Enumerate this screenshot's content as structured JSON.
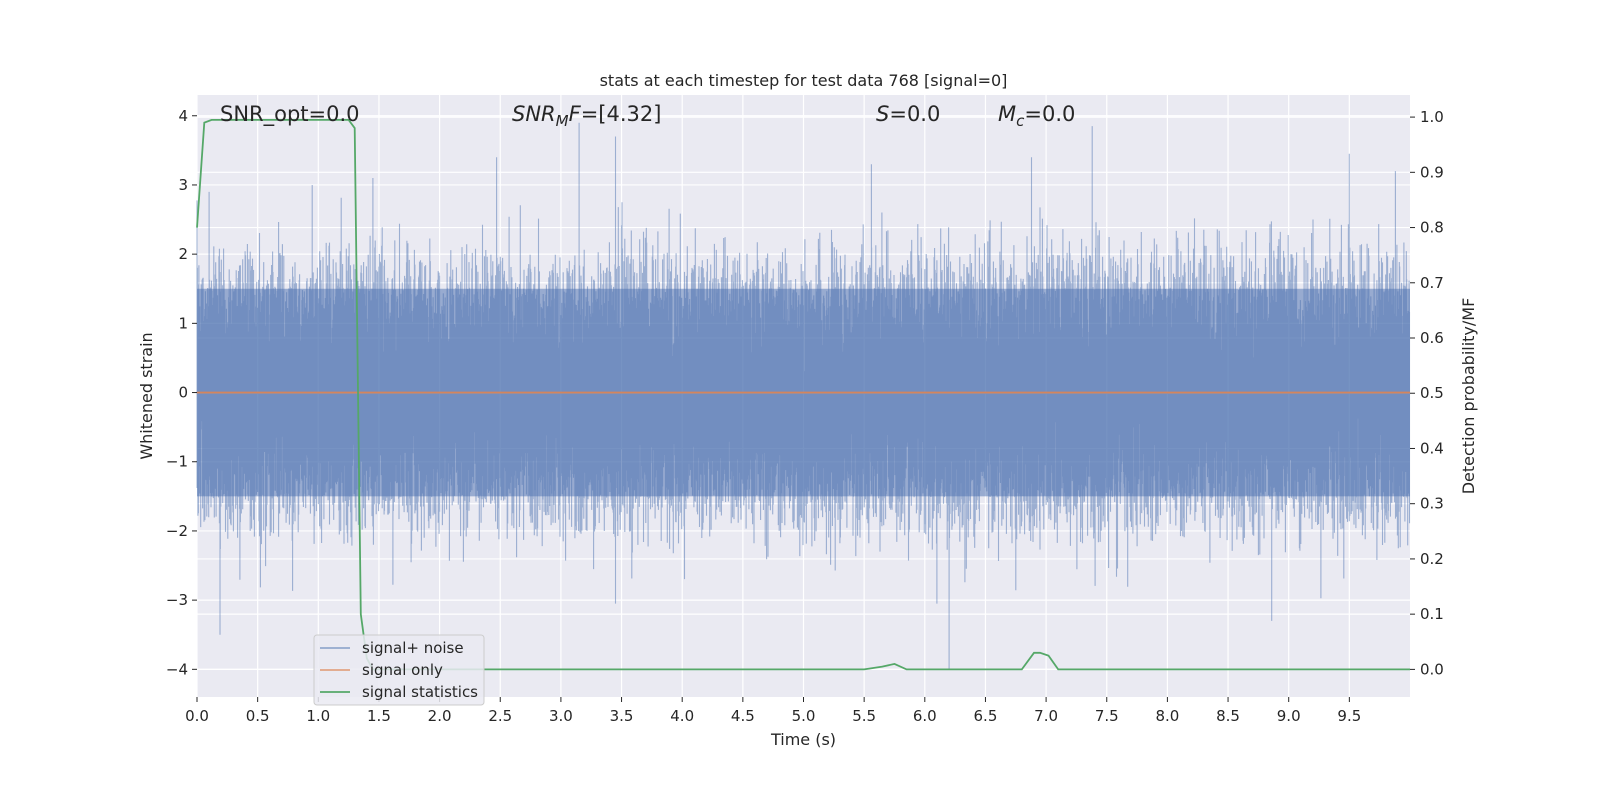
{
  "chart_data": {
    "type": "line",
    "title": "stats at each timestep for test data 768 [signal=0]",
    "xlabel": "Time (s)",
    "ylabel": "Whitened strain",
    "y2label": "Detection probability/MF",
    "xlim": [
      0.0,
      10.0
    ],
    "ylim": [
      -4.4,
      4.3
    ],
    "y2lim": [
      -0.05,
      1.04
    ],
    "xticks": [
      0.0,
      0.5,
      1.0,
      1.5,
      2.0,
      2.5,
      3.0,
      3.5,
      4.0,
      4.5,
      5.0,
      5.5,
      6.0,
      6.5,
      7.0,
      7.5,
      8.0,
      8.5,
      9.0,
      9.5
    ],
    "xtick_labels": [
      "0.0",
      "0.5",
      "1.0",
      "1.5",
      "2.0",
      "2.5",
      "3.0",
      "3.5",
      "4.0",
      "4.5",
      "5.0",
      "5.5",
      "6.0",
      "6.5",
      "7.0",
      "7.5",
      "8.0",
      "8.5",
      "9.0",
      "9.5"
    ],
    "yticks": [
      4,
      3,
      2,
      1,
      0,
      -1,
      -2,
      -3,
      -4
    ],
    "ytick_labels": [
      "4",
      "3",
      "2",
      "1",
      "0",
      "−1",
      "−2",
      "−3",
      "−4"
    ],
    "y2ticks": [
      1.0,
      0.9,
      0.8,
      0.7,
      0.6,
      0.5,
      0.4,
      0.3,
      0.2,
      0.1,
      0.0
    ],
    "y2tick_labels": [
      "1.0",
      "0.9",
      "0.8",
      "0.7",
      "0.6",
      "0.5",
      "0.4",
      "0.3",
      "0.2",
      "0.1",
      "0.0"
    ],
    "grid": true,
    "legend_position": "lower-left",
    "annotations": {
      "snr_opt": "SNR_opt=0.0",
      "snr_mf": "=[4.32]",
      "snr_mf_symbol": "SNR",
      "snr_mf_sub": "M",
      "snr_mf_suffix": "F",
      "s_symbol": "S",
      "s_value": "=0.0",
      "mc_symbol": "M",
      "mc_sub": "c",
      "mc_value": "=0.0"
    },
    "series": [
      {
        "name": "signal+ noise",
        "color": "#4c72b0",
        "axis": "left",
        "style": "noise",
        "amplitude_envelope": 1.5,
        "peaks": [
          [
            0.19,
            -3.5
          ],
          [
            0.1,
            2.9
          ],
          [
            0.95,
            3.0
          ],
          [
            1.45,
            3.1
          ],
          [
            2.47,
            3.4
          ],
          [
            3.15,
            3.9
          ],
          [
            3.45,
            3.7
          ],
          [
            3.45,
            -3.05
          ],
          [
            5.56,
            3.3
          ],
          [
            6.2,
            -4.0
          ],
          [
            6.1,
            -3.05
          ],
          [
            6.88,
            3.4
          ],
          [
            7.38,
            3.85
          ],
          [
            8.86,
            -3.3
          ],
          [
            9.5,
            3.45
          ],
          [
            9.88,
            3.2
          ]
        ]
      },
      {
        "name": "signal only",
        "color": "#dd8452",
        "axis": "left",
        "x": [
          0.0,
          10.0
        ],
        "y": [
          0.0,
          0.0
        ]
      },
      {
        "name": "signal statistics",
        "color": "#55a868",
        "axis": "right",
        "x": [
          0.0,
          0.06,
          0.12,
          0.2,
          0.4,
          0.8,
          1.2,
          1.25,
          1.3,
          1.35,
          1.4,
          1.45,
          2.0,
          5.5,
          5.65,
          5.75,
          5.85,
          6.0,
          6.8,
          6.9,
          6.95,
          7.02,
          7.1,
          7.2,
          10.0
        ],
        "y": [
          0.8,
          0.99,
          0.995,
          0.995,
          0.995,
          0.995,
          0.995,
          0.995,
          0.98,
          0.1,
          0.02,
          0.0,
          0.0,
          0.0,
          0.005,
          0.01,
          0.0,
          0.0,
          0.0,
          0.03,
          0.03,
          0.025,
          0.0,
          0.0,
          0.0
        ]
      }
    ]
  }
}
